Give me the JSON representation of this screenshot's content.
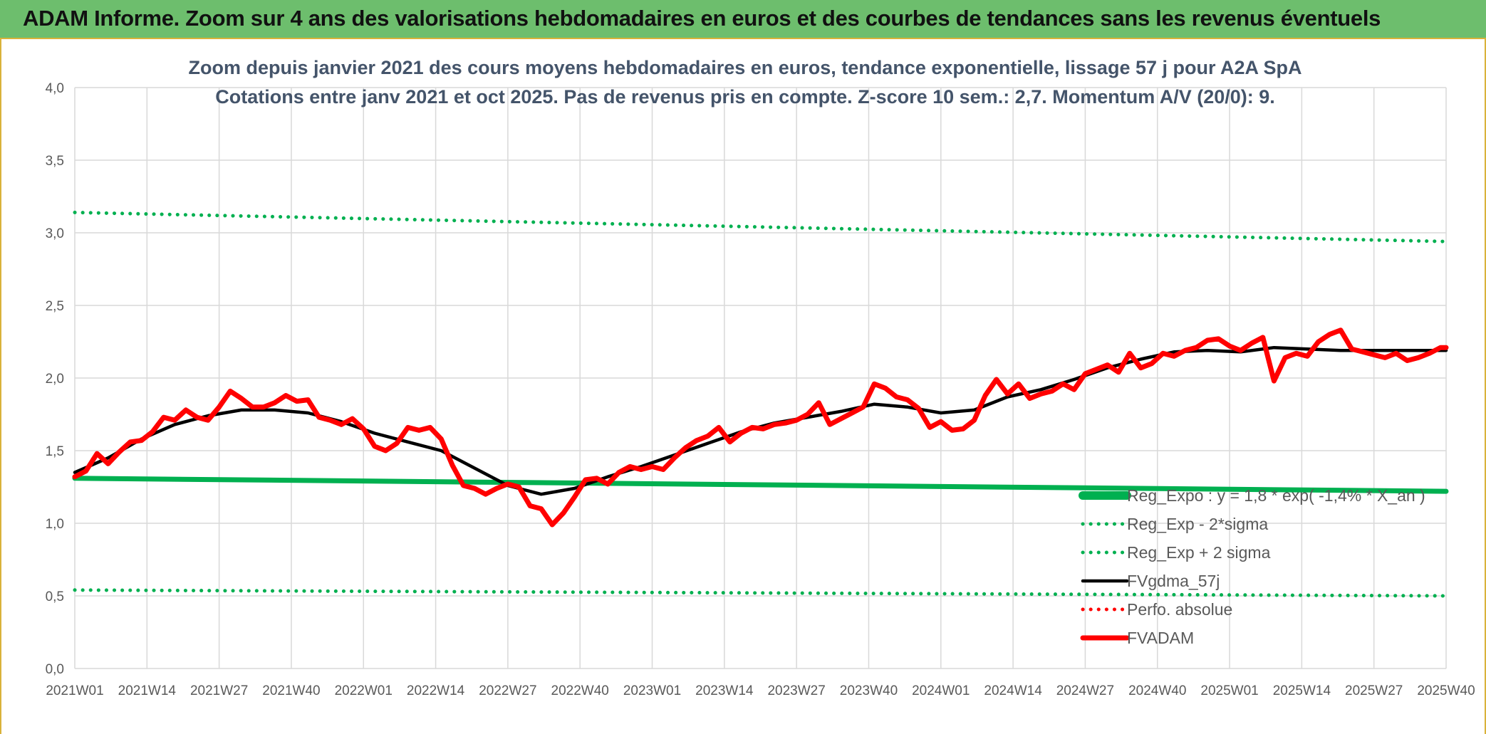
{
  "header": {
    "title": "ADAM Informe. Zoom sur 4 ans des valorisations hebdomadaires en euros et des courbes de tendances sans les revenus éventuels"
  },
  "colors": {
    "header_bg": "#6dbe6d",
    "green": "#00b050",
    "red": "#ff0000",
    "black": "#000000",
    "grid": "#d9d9d9",
    "text": "#595959",
    "title_text": "#44546a"
  },
  "chart_data": {
    "type": "line",
    "title": "Zoom depuis janvier 2021 des cours moyens hebdomadaires en euros, tendance exponentielle, lissage 57 j pour A2A SpA",
    "subtitle": "Cotations entre janv 2021 et oct 2025. Pas de revenus pris en compte. Z-score 10 sem.: 2,7. Momentum A/V (20/0): 9.",
    "xlabel": "",
    "ylabel": "",
    "ylim": [
      0,
      4
    ],
    "y_ticks": [
      "0,0",
      "0,5",
      "1,0",
      "1,5",
      "2,0",
      "2,5",
      "3,0",
      "3,5",
      "4,0"
    ],
    "x_ticks": [
      "2021W01",
      "2021W14",
      "2021W27",
      "2021W40",
      "2022W01",
      "2022W14",
      "2022W27",
      "2022W40",
      "2023W01",
      "2023W14",
      "2023W27",
      "2023W40",
      "2024W01",
      "2024W14",
      "2024W27",
      "2024W40",
      "2025W01",
      "2025W14",
      "2025W27",
      "2025W40"
    ],
    "grid": true,
    "legend_position": "bottom-right",
    "series": [
      {
        "name": "Reg_Expo : y = 1,8 * exp( -1,4% * X_an )",
        "color": "#00b050",
        "style": "solid-thick",
        "x": [
          0,
          247
        ],
        "values": [
          1.31,
          1.22
        ]
      },
      {
        "name": "Reg_Exp - 2*sigma",
        "color": "#00b050",
        "style": "dotted",
        "x": [
          0,
          247
        ],
        "values": [
          0.54,
          0.5
        ]
      },
      {
        "name": "Reg_Exp + 2 sigma",
        "color": "#00b050",
        "style": "dotted",
        "x": [
          0,
          247
        ],
        "values": [
          3.14,
          2.94
        ]
      },
      {
        "name": "FVgdma_57j",
        "color": "#000000",
        "style": "solid",
        "x": [
          0,
          6,
          12,
          18,
          24,
          30,
          36,
          42,
          48,
          54,
          60,
          66,
          72,
          78,
          84,
          90,
          96,
          102,
          108,
          114,
          120,
          126,
          132,
          138,
          144,
          150,
          156,
          162,
          168,
          174,
          180,
          186,
          192,
          198,
          204,
          210,
          216,
          222,
          228,
          234,
          240,
          247
        ],
        "values": [
          1.35,
          1.45,
          1.58,
          1.68,
          1.74,
          1.78,
          1.78,
          1.76,
          1.7,
          1.62,
          1.56,
          1.5,
          1.38,
          1.26,
          1.2,
          1.24,
          1.32,
          1.39,
          1.47,
          1.55,
          1.63,
          1.69,
          1.73,
          1.77,
          1.82,
          1.8,
          1.76,
          1.78,
          1.87,
          1.92,
          1.99,
          2.07,
          2.13,
          2.18,
          2.19,
          2.18,
          2.21,
          2.2,
          2.19,
          2.19,
          2.19,
          2.19
        ]
      },
      {
        "name": "Perfo. absolue",
        "color": "#ff0000",
        "style": "dotted",
        "x": [],
        "values": []
      },
      {
        "name": "FVADAM",
        "color": "#ff0000",
        "style": "solid-thick",
        "x": [
          0,
          2,
          4,
          6,
          8,
          10,
          12,
          14,
          16,
          18,
          20,
          22,
          24,
          26,
          28,
          30,
          32,
          34,
          36,
          38,
          40,
          42,
          44,
          46,
          48,
          50,
          52,
          54,
          56,
          58,
          60,
          62,
          64,
          66,
          68,
          70,
          72,
          74,
          76,
          78,
          80,
          82,
          84,
          86,
          88,
          90,
          92,
          94,
          96,
          98,
          100,
          102,
          104,
          106,
          108,
          110,
          112,
          114,
          116,
          118,
          120,
          122,
          124,
          126,
          128,
          130,
          132,
          134,
          136,
          138,
          140,
          142,
          144,
          146,
          148,
          150,
          152,
          154,
          156,
          158,
          160,
          162,
          164,
          166,
          168,
          170,
          172,
          174,
          176,
          178,
          180,
          182,
          184,
          186,
          188,
          190,
          192,
          194,
          196,
          198,
          200,
          202,
          204,
          206,
          208,
          210,
          212,
          214,
          216,
          218,
          220,
          222,
          224,
          226,
          228,
          230,
          232,
          234,
          236,
          238,
          240,
          242,
          244,
          246,
          247
        ],
        "values": [
          1.32,
          1.36,
          1.48,
          1.41,
          1.49,
          1.56,
          1.57,
          1.63,
          1.73,
          1.71,
          1.78,
          1.73,
          1.71,
          1.8,
          1.91,
          1.86,
          1.8,
          1.8,
          1.83,
          1.88,
          1.84,
          1.85,
          1.73,
          1.71,
          1.68,
          1.72,
          1.65,
          1.53,
          1.5,
          1.55,
          1.66,
          1.64,
          1.66,
          1.58,
          1.4,
          1.26,
          1.24,
          1.2,
          1.24,
          1.27,
          1.25,
          1.12,
          1.1,
          0.99,
          1.07,
          1.18,
          1.3,
          1.31,
          1.27,
          1.35,
          1.39,
          1.37,
          1.39,
          1.37,
          1.45,
          1.52,
          1.57,
          1.6,
          1.66,
          1.56,
          1.62,
          1.66,
          1.65,
          1.68,
          1.69,
          1.71,
          1.75,
          1.83,
          1.68,
          1.72,
          1.76,
          1.8,
          1.96,
          1.93,
          1.87,
          1.85,
          1.79,
          1.66,
          1.7,
          1.64,
          1.65,
          1.71,
          1.88,
          1.99,
          1.89,
          1.96,
          1.86,
          1.89,
          1.91,
          1.96,
          1.92,
          2.03,
          2.06,
          2.09,
          2.04,
          2.17,
          2.07,
          2.1,
          2.17,
          2.15,
          2.19,
          2.21,
          2.26,
          2.27,
          2.22,
          2.19,
          2.24,
          2.28,
          1.98,
          2.14,
          2.17,
          2.15,
          2.25,
          2.3,
          2.33,
          2.2,
          2.18,
          2.16,
          2.14,
          2.17,
          2.12,
          2.14,
          2.17,
          2.21,
          2.21
        ]
      }
    ]
  }
}
